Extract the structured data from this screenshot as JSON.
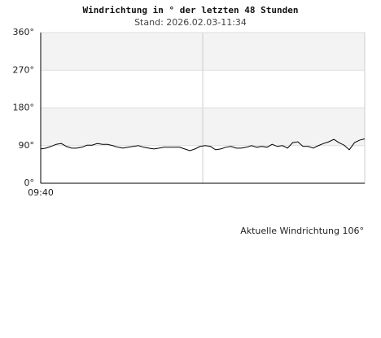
{
  "chart_data": {
    "type": "line",
    "title": "Windrichtung in ° der letzten 48 Stunden",
    "subtitle": "Stand: 2026.02.03-11:34",
    "annotation": "Aktuelle Windrichtung 106°",
    "categories": [
      "09:40",
      null,
      null,
      null,
      null,
      null,
      null,
      null,
      null,
      null,
      null,
      null,
      null,
      null,
      null,
      null,
      null,
      null,
      null,
      null,
      null,
      null,
      null,
      null,
      null,
      null,
      null,
      null,
      null,
      null,
      null,
      null,
      null,
      null,
      null,
      null,
      null,
      null,
      null,
      null,
      null,
      null,
      null,
      null,
      null,
      null,
      null,
      null,
      null,
      null,
      null,
      null,
      null,
      null,
      null,
      null,
      null,
      null,
      null,
      null,
      null,
      null,
      null,
      null
    ],
    "values": [
      82,
      84,
      88,
      93,
      95,
      88,
      84,
      84,
      86,
      91,
      91,
      95,
      93,
      93,
      90,
      86,
      84,
      86,
      88,
      90,
      86,
      84,
      82,
      84,
      86,
      86,
      86,
      86,
      82,
      78,
      82,
      88,
      90,
      88,
      80,
      82,
      86,
      88,
      84,
      84,
      86,
      90,
      86,
      88,
      86,
      93,
      88,
      90,
      84,
      97,
      99,
      88,
      88,
      84,
      90,
      95,
      99,
      105,
      97,
      91,
      80,
      97,
      103,
      106
    ],
    "color": "#000000",
    "band_color": "#f3f3f3",
    "ylim": [
      0,
      360
    ],
    "yticks": [
      {
        "value": 0,
        "label": "0°"
      },
      {
        "value": 90,
        "label": "90°"
      },
      {
        "value": 180,
        "label": "180°"
      },
      {
        "value": 270,
        "label": "270°"
      },
      {
        "value": 360,
        "label": "360°"
      }
    ],
    "grid": true
  }
}
